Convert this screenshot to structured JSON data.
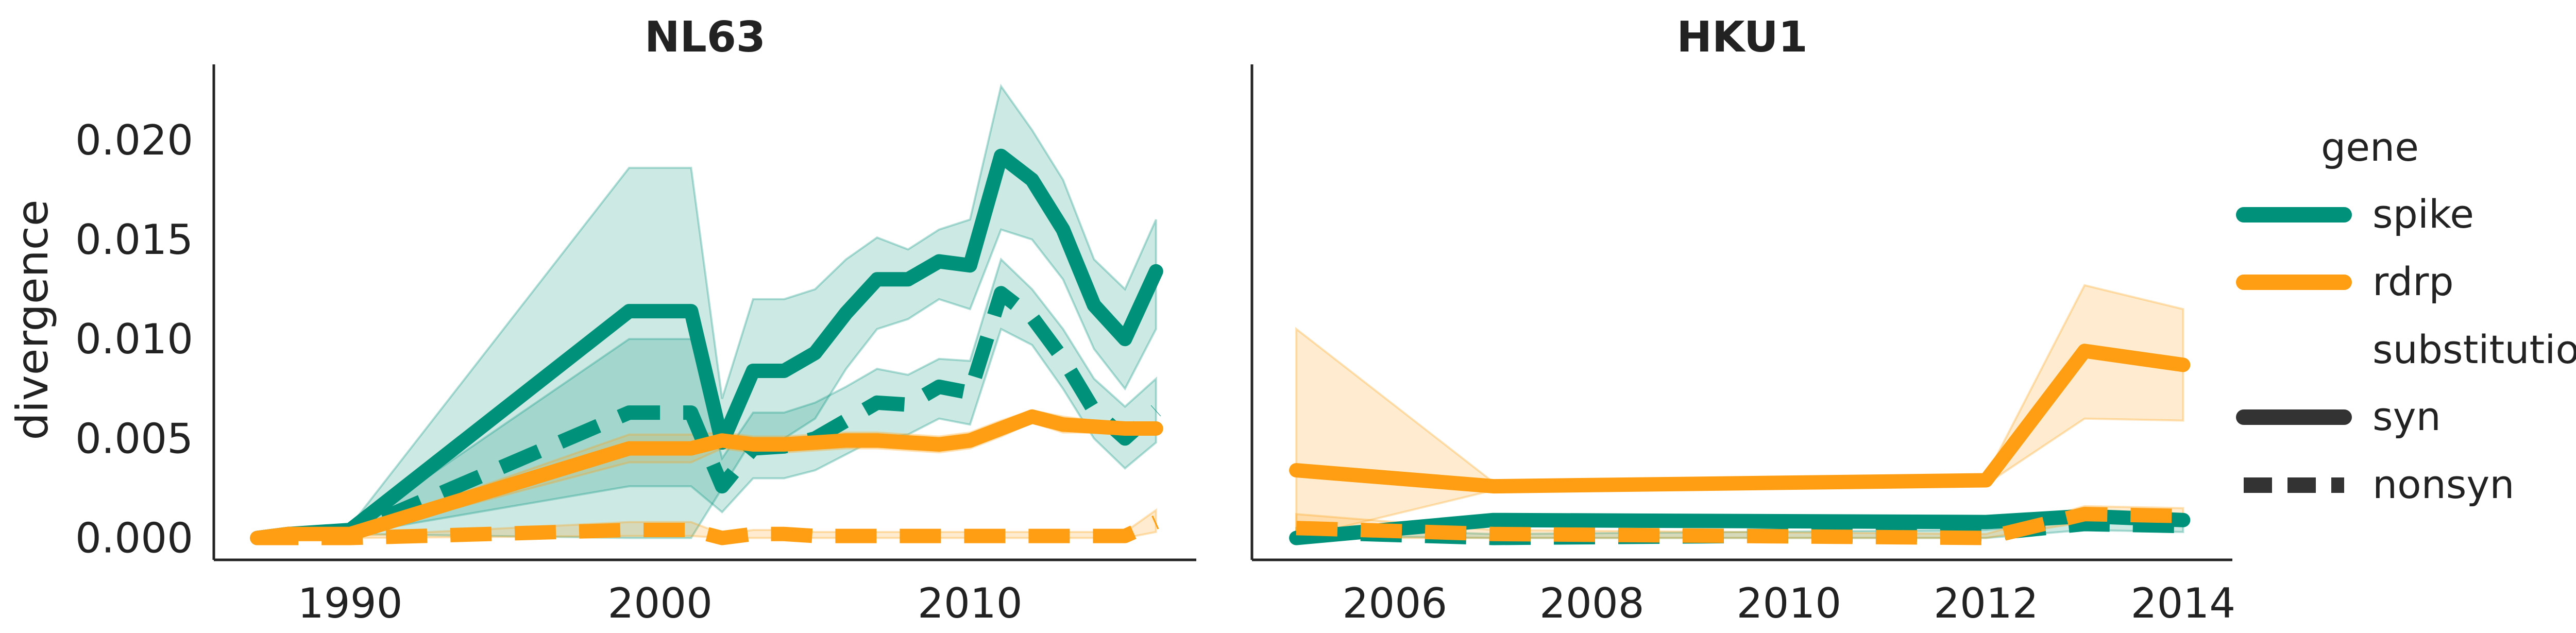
{
  "chart_data": [
    {
      "type": "line",
      "title": "NL63",
      "xlabel": "",
      "ylabel": "divergence",
      "xlim": [
        1985.6,
        2017.3
      ],
      "ylim": [
        -0.0011,
        0.0238
      ],
      "xticks": [
        1990,
        2000,
        2010
      ],
      "yticks": [
        0.0,
        0.005,
        0.01,
        0.015,
        0.02
      ],
      "ytick_labels": [
        "0.000",
        "0.005",
        "0.010",
        "0.015",
        "0.020"
      ],
      "series": [
        {
          "gene": "spike",
          "substitution": "syn",
          "color": "#00917a",
          "dash": "solid",
          "x": [
            1987,
            1988,
            1990,
            1999,
            2001,
            2002,
            2003,
            2004,
            2005,
            2006,
            2007,
            2008,
            2009,
            2010,
            2011,
            2012,
            2013,
            2014,
            2015,
            2016
          ],
          "y": [
            0.0,
            0.0002,
            0.0004,
            0.0114,
            0.0114,
            0.0048,
            0.0084,
            0.0084,
            0.0093,
            0.0113,
            0.013,
            0.013,
            0.0139,
            0.0137,
            0.0192,
            0.018,
            0.0155,
            0.0117,
            0.01,
            0.0134
          ],
          "ci_upper": [
            0.0,
            0.0003,
            0.0006,
            0.0186,
            0.0186,
            0.007,
            0.012,
            0.012,
            0.0125,
            0.014,
            0.0151,
            0.0145,
            0.0155,
            0.016,
            0.0227,
            0.0205,
            0.018,
            0.014,
            0.0125,
            0.016
          ],
          "ci_lower": [
            0.0,
            0.0001,
            0.0002,
            0.0,
            0.0,
            0.0025,
            0.005,
            0.005,
            0.006,
            0.0085,
            0.0105,
            0.011,
            0.012,
            0.0115,
            0.0155,
            0.015,
            0.013,
            0.0095,
            0.0075,
            0.0105
          ]
        },
        {
          "gene": "spike",
          "substitution": "nonsyn",
          "color": "#00917a",
          "dash": "dashed",
          "x": [
            1987,
            1988,
            1990,
            1999,
            2001,
            2002,
            2003,
            2004,
            2005,
            2006,
            2007,
            2008,
            2009,
            2010,
            2011,
            2012,
            2013,
            2014,
            2015,
            2016
          ],
          "y": [
            0.0,
            0.0002,
            0.0003,
            0.0063,
            0.0063,
            0.0026,
            0.0045,
            0.0046,
            0.005,
            0.0059,
            0.0068,
            0.0067,
            0.0076,
            0.0073,
            0.0123,
            0.0111,
            0.009,
            0.0064,
            0.005,
            0.0064
          ],
          "ci_upper": [
            0.0,
            0.0003,
            0.0004,
            0.01,
            0.01,
            0.004,
            0.0063,
            0.0063,
            0.0068,
            0.0076,
            0.0085,
            0.0082,
            0.009,
            0.0089,
            0.014,
            0.0125,
            0.0105,
            0.008,
            0.0066,
            0.008
          ],
          "ci_lower": [
            0.0,
            0.0001,
            0.0002,
            0.0026,
            0.0026,
            0.0013,
            0.003,
            0.003,
            0.0034,
            0.0042,
            0.005,
            0.0052,
            0.006,
            0.0057,
            0.0105,
            0.0097,
            0.0075,
            0.005,
            0.0035,
            0.0048
          ]
        },
        {
          "gene": "rdrp",
          "substitution": "syn",
          "color": "#ff9e12",
          "dash": "solid",
          "x": [
            1987,
            1988,
            1990,
            1999,
            2001,
            2002,
            2003,
            2004,
            2005,
            2006,
            2007,
            2008,
            2009,
            2010,
            2011,
            2012,
            2013,
            2014,
            2015,
            2016
          ],
          "y": [
            0.0,
            0.0002,
            0.0002,
            0.0045,
            0.0045,
            0.0049,
            0.0047,
            0.0047,
            0.0048,
            0.0049,
            0.0049,
            0.0048,
            0.0047,
            0.0049,
            0.0055,
            0.0061,
            0.0057,
            0.0056,
            0.0055,
            0.0055
          ],
          "ci_upper": [
            0.0,
            0.0003,
            0.0003,
            0.0052,
            0.0052,
            0.0053,
            0.0051,
            0.0051,
            0.0052,
            0.0053,
            0.0053,
            0.0052,
            0.0051,
            0.0053,
            0.0059,
            0.0064,
            0.0061,
            0.0059,
            0.0058,
            0.0058
          ],
          "ci_lower": [
            0.0,
            0.0001,
            0.0001,
            0.0038,
            0.0038,
            0.0045,
            0.0043,
            0.0043,
            0.0044,
            0.0045,
            0.0045,
            0.0044,
            0.0043,
            0.0045,
            0.0051,
            0.0058,
            0.0053,
            0.0053,
            0.0052,
            0.0052
          ]
        },
        {
          "gene": "rdrp",
          "substitution": "nonsyn",
          "color": "#ff9e12",
          "dash": "dashed",
          "x": [
            1987,
            1988,
            1990,
            1999,
            2001,
            2002,
            2003,
            2004,
            2005,
            2006,
            2007,
            2008,
            2009,
            2010,
            2011,
            2012,
            2013,
            2014,
            2015,
            2016
          ],
          "y": [
            0.0,
            0.0,
            0.0,
            0.0004,
            0.0004,
            0.0,
            0.0002,
            0.0002,
            0.0001,
            0.0001,
            0.0001,
            0.0001,
            0.0001,
            0.0001,
            0.0001,
            0.0001,
            0.0001,
            0.0001,
            0.0001,
            0.0008
          ],
          "ci_upper": [
            0.0,
            0.0001,
            0.0001,
            0.0008,
            0.0008,
            0.0002,
            0.0004,
            0.0004,
            0.0003,
            0.0003,
            0.0003,
            0.0003,
            0.0003,
            0.0003,
            0.0003,
            0.0003,
            0.0003,
            0.0003,
            0.0003,
            0.0014
          ],
          "ci_lower": [
            0.0,
            0.0,
            0.0,
            0.0001,
            0.0001,
            0.0,
            0.0,
            0.0,
            0.0,
            0.0,
            0.0,
            0.0,
            0.0,
            0.0,
            0.0,
            0.0,
            0.0,
            0.0,
            0.0,
            0.0003
          ]
        }
      ]
    },
    {
      "type": "line",
      "title": "HKU1",
      "xlabel": "",
      "ylabel": "",
      "xlim": [
        2004.55,
        2014.5
      ],
      "ylim": [
        -0.0011,
        0.0238
      ],
      "xticks": [
        2006,
        2008,
        2010,
        2012,
        2014
      ],
      "yticks": [
        0.0,
        0.005,
        0.01,
        0.015,
        0.02
      ],
      "series": [
        {
          "gene": "spike",
          "substitution": "syn",
          "color": "#00917a",
          "dash": "solid",
          "x": [
            2005,
            2007,
            2012,
            2013,
            2014
          ],
          "y": [
            0.0,
            0.0009,
            0.0008,
            0.0011,
            0.0009
          ],
          "ci_upper": [
            0.0002,
            0.0011,
            0.001,
            0.0014,
            0.0012
          ],
          "ci_lower": [
            0.0,
            0.0007,
            0.0006,
            0.0008,
            0.0006
          ]
        },
        {
          "gene": "spike",
          "substitution": "nonsyn",
          "color": "#00917a",
          "dash": "dashed",
          "x": [
            2005,
            2007,
            2012,
            2013,
            2014
          ],
          "y": [
            0.0003,
            0.0,
            0.0002,
            0.0007,
            0.0006
          ],
          "ci_upper": [
            0.0005,
            0.0002,
            0.0004,
            0.001,
            0.0009
          ],
          "ci_lower": [
            0.0001,
            0.0,
            0.0,
            0.0004,
            0.0003
          ]
        },
        {
          "gene": "rdrp",
          "substitution": "syn",
          "color": "#ff9e12",
          "dash": "solid",
          "x": [
            2005,
            2007,
            2012,
            2013,
            2014
          ],
          "y": [
            0.0034,
            0.0026,
            0.0029,
            0.0094,
            0.0087
          ],
          "ci_upper": [
            0.0105,
            0.0028,
            0.0031,
            0.0127,
            0.0115
          ],
          "ci_lower": [
            0.0,
            0.0024,
            0.0027,
            0.006,
            0.0059
          ]
        },
        {
          "gene": "rdrp",
          "substitution": "nonsyn",
          "color": "#ff9e12",
          "dash": "dashed",
          "x": [
            2005,
            2007,
            2012,
            2013,
            2014
          ],
          "y": [
            0.0005,
            0.0002,
            0.0,
            0.0012,
            0.0011
          ],
          "ci_upper": [
            0.0012,
            0.0004,
            0.0002,
            0.0016,
            0.0015
          ],
          "ci_lower": [
            0.0,
            0.0,
            0.0,
            0.0008,
            0.0007
          ]
        }
      ]
    }
  ],
  "legend": {
    "placement": "right",
    "gene_title": "gene",
    "gene_items": [
      {
        "label": "spike",
        "color": "#00917a"
      },
      {
        "label": "rdrp",
        "color": "#ff9e12"
      }
    ],
    "substitution_title": "substitution",
    "substitution_items": [
      {
        "label": "syn",
        "style": "solid",
        "color": "#333333"
      },
      {
        "label": "nonsyn",
        "style": "dashed",
        "color": "#333333"
      }
    ]
  }
}
